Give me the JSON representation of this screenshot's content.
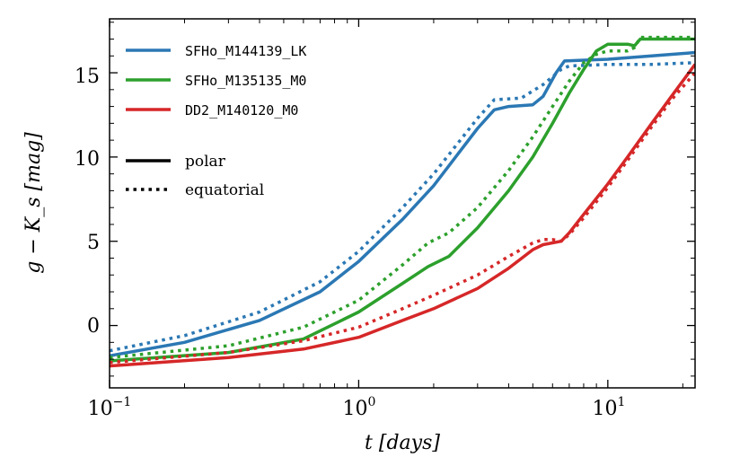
{
  "chart_data": {
    "type": "line",
    "title": "",
    "xlabel": "t [days]",
    "ylabel": "g − K_s [mag]",
    "xscale": "log",
    "xlim": [
      0.1,
      22.4
    ],
    "ylim": [
      -3.7,
      18.2
    ],
    "grid": false,
    "legend_position": "top-left",
    "x_ticks": [
      {
        "value": 0.1,
        "base": "10",
        "exp": "−1"
      },
      {
        "value": 1,
        "base": "10",
        "exp": "0"
      },
      {
        "value": 10,
        "base": "10",
        "exp": "1"
      }
    ],
    "y_ticks": [
      {
        "value": 0,
        "label": "0"
      },
      {
        "value": 5,
        "label": "5"
      },
      {
        "value": 10,
        "label": "10"
      },
      {
        "value": 15,
        "label": "15"
      }
    ],
    "models": [
      {
        "name": "SFHo_M144139_LK",
        "color": "#2b78b4"
      },
      {
        "name": "SFHo_M135135_M0",
        "color": "#2ca02c"
      },
      {
        "name": "DD2_M140120_M0",
        "color": "#d62728"
      }
    ],
    "linestyles": [
      {
        "name": "polar",
        "style": "solid"
      },
      {
        "name": "equatorial",
        "style": "dotted"
      }
    ],
    "series": [
      {
        "model": "SFHo_M144139_LK",
        "style": "polar",
        "color": "#2b78b4",
        "x": [
          0.1,
          0.2,
          0.4,
          0.7,
          1.0,
          1.5,
          2.0,
          3.0,
          3.5,
          4.0,
          5.0,
          5.5,
          6.2,
          6.7,
          10.0,
          15.0,
          22.4
        ],
        "y": [
          -1.8,
          -1.0,
          0.3,
          2.0,
          3.8,
          6.3,
          8.3,
          11.7,
          12.8,
          13.0,
          13.1,
          13.6,
          15.0,
          15.7,
          15.8,
          16.0,
          16.2
        ]
      },
      {
        "model": "SFHo_M144139_LK",
        "style": "equatorial",
        "color": "#2b78b4",
        "x": [
          0.1,
          0.2,
          0.4,
          0.7,
          1.0,
          1.5,
          2.0,
          3.0,
          3.5,
          4.5,
          5.5,
          6.5,
          7.0,
          10.0,
          15.0,
          22.4
        ],
        "y": [
          -1.5,
          -0.6,
          0.8,
          2.6,
          4.4,
          7.0,
          9.0,
          12.3,
          13.4,
          13.5,
          14.3,
          15.2,
          15.4,
          15.5,
          15.5,
          15.6
        ]
      },
      {
        "model": "SFHo_M135135_M0",
        "style": "polar",
        "color": "#2ca02c",
        "x": [
          0.1,
          0.3,
          0.6,
          1.0,
          1.5,
          1.9,
          2.3,
          3.0,
          4.0,
          5.0,
          6.0,
          7.0,
          8.0,
          9.0,
          10.0,
          12.0,
          12.8,
          13.5,
          16.0,
          22.4
        ],
        "y": [
          -2.1,
          -1.6,
          -0.8,
          0.8,
          2.5,
          3.5,
          4.1,
          5.8,
          8.0,
          10.0,
          12.0,
          13.8,
          15.2,
          16.3,
          16.7,
          16.7,
          16.6,
          17.0,
          17.0,
          17.0
        ]
      },
      {
        "model": "SFHo_M135135_M0",
        "style": "equatorial",
        "color": "#2ca02c",
        "x": [
          0.1,
          0.3,
          0.6,
          1.0,
          1.5,
          1.9,
          2.3,
          3.0,
          4.0,
          5.0,
          6.0,
          7.0,
          8.0,
          9.0,
          10.0,
          12.0,
          12.8,
          13.5,
          16.0,
          22.4
        ],
        "y": [
          -1.9,
          -1.2,
          -0.1,
          1.5,
          3.6,
          4.9,
          5.5,
          7.0,
          9.2,
          11.2,
          13.0,
          14.5,
          15.6,
          16.1,
          16.3,
          16.3,
          16.5,
          17.1,
          17.1,
          17.1
        ]
      },
      {
        "model": "DD2_M140120_M0",
        "style": "polar",
        "color": "#d62728",
        "x": [
          0.1,
          0.3,
          0.6,
          1.0,
          1.5,
          2.0,
          3.0,
          4.0,
          5.0,
          5.5,
          6.5,
          7.0,
          8.0,
          10.0,
          12.0,
          15.0,
          18.0,
          22.4
        ],
        "y": [
          -2.4,
          -1.9,
          -1.4,
          -0.7,
          0.3,
          1.0,
          2.2,
          3.4,
          4.5,
          4.8,
          5.0,
          5.5,
          6.6,
          8.4,
          10.0,
          12.0,
          13.6,
          15.5
        ]
      },
      {
        "model": "DD2_M140120_M0",
        "style": "equatorial",
        "color": "#d62728",
        "x": [
          0.1,
          0.3,
          0.6,
          1.0,
          1.5,
          2.0,
          3.0,
          4.0,
          5.0,
          5.5,
          6.0,
          6.5,
          7.0,
          8.0,
          10.0,
          12.0,
          15.0,
          18.0,
          22.4
        ],
        "y": [
          -2.2,
          -1.6,
          -0.9,
          -0.1,
          1.0,
          1.8,
          3.0,
          4.1,
          4.9,
          5.1,
          5.1,
          5.0,
          5.4,
          6.4,
          8.2,
          9.8,
          11.8,
          13.4,
          15.0
        ]
      }
    ]
  }
}
